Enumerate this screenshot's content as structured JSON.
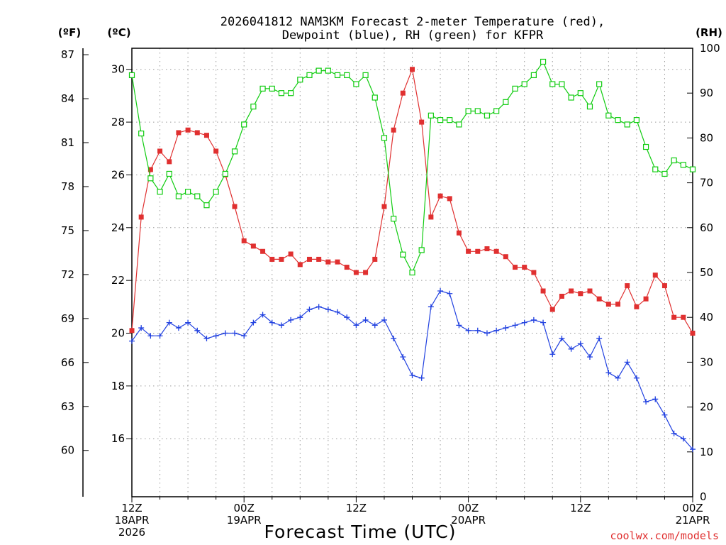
{
  "chart_data": {
    "type": "line",
    "title_line1": "2026041812 NAM3KM Forecast 2-meter Temperature (red),",
    "title_line2": "Dewpoint (blue), RH (green) for KFPR",
    "xlabel": "Forecast Time (UTC)",
    "credit": "coolwx.com/models",
    "units": {
      "fahrenheit": "(ºF)",
      "celsius": "(ºC)",
      "rh": "(RH)"
    },
    "ylim_celsius": [
      13.8,
      30.8
    ],
    "ylim_rh": [
      0,
      100
    ],
    "x_range_hours": [
      0,
      60
    ],
    "celsius_ticks": [
      16,
      18,
      20,
      22,
      24,
      26,
      28,
      30
    ],
    "fahrenheit_ticks": [
      60,
      63,
      66,
      69,
      72,
      75,
      78,
      81,
      84,
      87
    ],
    "rh_ticks": [
      0,
      10,
      20,
      30,
      40,
      50,
      60,
      70,
      80,
      90,
      100
    ],
    "x_ticks": [
      {
        "hour": 0,
        "labels": [
          "12Z",
          "18APR",
          "2026"
        ]
      },
      {
        "hour": 12,
        "labels": [
          "00Z",
          "19APR"
        ]
      },
      {
        "hour": 24,
        "labels": [
          "12Z"
        ]
      },
      {
        "hour": 36,
        "labels": [
          "00Z",
          "20APR"
        ]
      },
      {
        "hour": 48,
        "labels": [
          "12Z"
        ]
      },
      {
        "hour": 60,
        "labels": [
          "00Z",
          "21APR"
        ]
      }
    ],
    "x": [
      0,
      1,
      2,
      3,
      4,
      5,
      6,
      7,
      8,
      9,
      10,
      11,
      12,
      13,
      14,
      15,
      16,
      17,
      18,
      19,
      20,
      21,
      22,
      23,
      24,
      25,
      26,
      27,
      28,
      29,
      30,
      31,
      32,
      33,
      34,
      35,
      36,
      37,
      38,
      39,
      40,
      41,
      42,
      43,
      44,
      45,
      46,
      47,
      48,
      49,
      50,
      51,
      52,
      53,
      54,
      55,
      56,
      57,
      58,
      59,
      60
    ],
    "series": [
      {
        "name": "Temperature",
        "unit": "C",
        "color": "#e03030",
        "marker": "filled-square",
        "values": [
          20.1,
          24.4,
          26.2,
          26.9,
          26.5,
          27.6,
          27.7,
          27.6,
          27.5,
          26.9,
          26.0,
          24.8,
          23.5,
          23.3,
          23.1,
          22.8,
          22.8,
          23.0,
          22.6,
          22.8,
          22.8,
          22.7,
          22.7,
          22.5,
          22.3,
          22.3,
          22.8,
          24.8,
          27.7,
          29.1,
          30.0,
          28.0,
          24.4,
          25.2,
          25.1,
          23.8,
          23.1,
          23.1,
          23.2,
          23.1,
          22.9,
          22.5,
          22.5,
          22.3,
          21.6,
          20.9,
          21.4,
          21.6,
          21.5,
          21.6,
          21.3,
          21.1,
          21.1,
          21.8,
          21.0,
          21.3,
          22.2,
          21.8,
          20.6,
          20.6,
          20.0
        ]
      },
      {
        "name": "Dewpoint",
        "unit": "C",
        "color": "#2040e0",
        "marker": "plus",
        "values": [
          19.7,
          20.2,
          19.9,
          19.9,
          20.4,
          20.2,
          20.4,
          20.1,
          19.8,
          19.9,
          20.0,
          20.0,
          19.9,
          20.4,
          20.7,
          20.4,
          20.3,
          20.5,
          20.6,
          20.9,
          21.0,
          20.9,
          20.8,
          20.6,
          20.3,
          20.5,
          20.3,
          20.5,
          19.8,
          19.1,
          18.4,
          18.3,
          21.0,
          21.6,
          21.5,
          20.3,
          20.1,
          20.1,
          20.0,
          20.1,
          20.2,
          20.3,
          20.4,
          20.5,
          20.4,
          19.2,
          19.8,
          19.4,
          19.6,
          19.1,
          19.8,
          18.5,
          18.3,
          18.9,
          18.3,
          17.4,
          17.5,
          16.9,
          16.2,
          16.0,
          15.6
        ]
      },
      {
        "name": "RH",
        "unit": "%",
        "color": "#10cc10",
        "marker": "open-square",
        "values": [
          94,
          81,
          71,
          68,
          72,
          67,
          68,
          67,
          65,
          68,
          72,
          77,
          83,
          87,
          91,
          91,
          90,
          90,
          93,
          94,
          95,
          95,
          94,
          94,
          92,
          94,
          89,
          80,
          62,
          54,
          50,
          55,
          85,
          84,
          84,
          83,
          86,
          86,
          85,
          86,
          88,
          91,
          92,
          94,
          97,
          92,
          92,
          89,
          90,
          87,
          92,
          85,
          84,
          83,
          84,
          78,
          73,
          72,
          75,
          74,
          73
        ]
      }
    ]
  }
}
